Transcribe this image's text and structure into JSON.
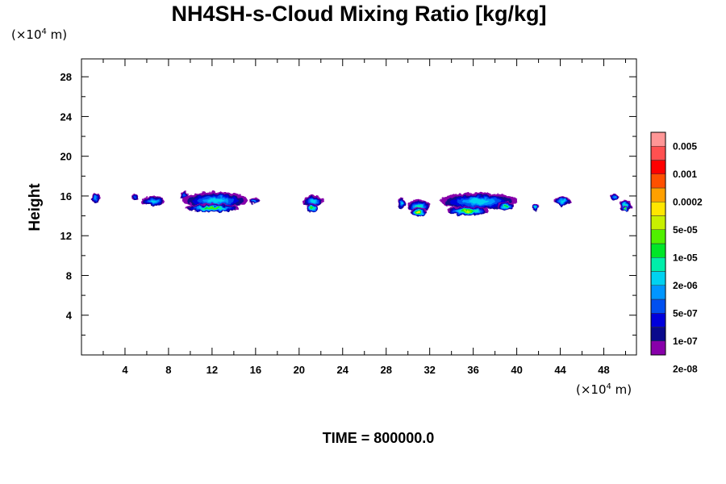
{
  "chart_data": {
    "type": "heatmap",
    "title": "NH4SH-s-Cloud Mixing Ratio [kg/kg]",
    "ylabel": "Height",
    "xlabel": "",
    "y_unit_prefix": "(×10",
    "y_unit_exp": "4",
    "y_unit_suffix": " m)",
    "x_unit_prefix": "(×10",
    "x_unit_exp": "4",
    "x_unit_suffix": " m)",
    "xlim": [
      0,
      51
    ],
    "ylim": [
      0,
      29.8
    ],
    "x_ticks": [
      4,
      8,
      12,
      16,
      20,
      24,
      28,
      32,
      36,
      40,
      44,
      48
    ],
    "y_ticks": [
      4,
      8,
      12,
      16,
      20,
      24,
      28
    ],
    "x_tick_labels": [
      "4",
      "8",
      "12",
      "16",
      "20",
      "24",
      "28",
      "32",
      "36",
      "40",
      "44",
      "48"
    ],
    "y_tick_labels": [
      "4",
      "8",
      "12",
      "16",
      "20",
      "24",
      "28"
    ],
    "time_label": "TIME = 800000.0",
    "colorbar": {
      "labels": [
        "0.005",
        "0.001",
        "0.0002",
        "5e-05",
        "1e-05",
        "2e-06",
        "5e-07",
        "1e-07",
        "2e-08"
      ],
      "colors": [
        "#8800aa",
        "#0a0a8c",
        "#0000dc",
        "#0050f0",
        "#0096ff",
        "#00d2f0",
        "#00eeaa",
        "#00e628",
        "#50f000",
        "#c8f000",
        "#ffe600",
        "#ffa000",
        "#ff5000",
        "#ff0000",
        "#ff5050",
        "#ff9696"
      ]
    },
    "cloud_blobs": [
      {
        "x": 1.3,
        "y": 15.8,
        "w": 0.9,
        "h": 0.9,
        "level": 4
      },
      {
        "x": 4.9,
        "y": 15.9,
        "w": 0.6,
        "h": 0.6,
        "level": 3
      },
      {
        "x": 6.6,
        "y": 15.5,
        "w": 2.2,
        "h": 1.0,
        "level": 5
      },
      {
        "x": 9.4,
        "y": 16.1,
        "w": 0.7,
        "h": 0.7,
        "level": 3
      },
      {
        "x": 12.3,
        "y": 15.6,
        "w": 6.0,
        "h": 1.6,
        "level": 5
      },
      {
        "x": 12.0,
        "y": 14.8,
        "w": 5.0,
        "h": 0.8,
        "level": 8
      },
      {
        "x": 15.9,
        "y": 15.5,
        "w": 1.0,
        "h": 0.6,
        "level": 4
      },
      {
        "x": 21.3,
        "y": 15.5,
        "w": 1.8,
        "h": 1.1,
        "level": 5
      },
      {
        "x": 21.2,
        "y": 14.8,
        "w": 1.1,
        "h": 0.8,
        "level": 8
      },
      {
        "x": 29.4,
        "y": 15.3,
        "w": 0.7,
        "h": 1.0,
        "level": 5
      },
      {
        "x": 31.0,
        "y": 15.0,
        "w": 2.0,
        "h": 1.3,
        "level": 6
      },
      {
        "x": 31.0,
        "y": 14.4,
        "w": 1.4,
        "h": 0.9,
        "level": 10
      },
      {
        "x": 36.5,
        "y": 15.5,
        "w": 7.2,
        "h": 1.7,
        "level": 5
      },
      {
        "x": 35.5,
        "y": 14.5,
        "w": 3.8,
        "h": 0.9,
        "level": 9
      },
      {
        "x": 39.0,
        "y": 15.0,
        "w": 1.4,
        "h": 0.8,
        "level": 7
      },
      {
        "x": 41.7,
        "y": 14.9,
        "w": 0.7,
        "h": 0.7,
        "level": 6
      },
      {
        "x": 44.2,
        "y": 15.5,
        "w": 1.6,
        "h": 0.9,
        "level": 5
      },
      {
        "x": 49.0,
        "y": 15.9,
        "w": 0.8,
        "h": 0.6,
        "level": 4
      },
      {
        "x": 50.0,
        "y": 15.0,
        "w": 1.1,
        "h": 1.2,
        "level": 6
      },
      {
        "x": 50.0,
        "y": 14.7,
        "w": 0.6,
        "h": 0.6,
        "level": 8
      }
    ]
  }
}
